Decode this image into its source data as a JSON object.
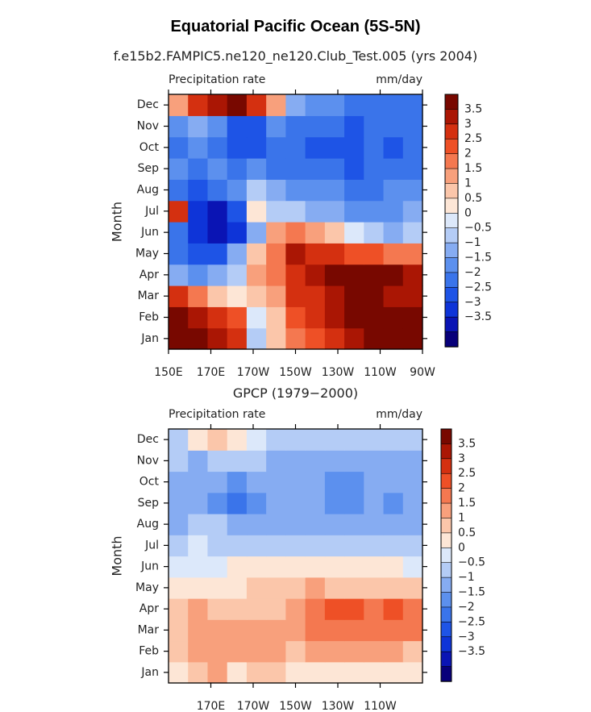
{
  "figure": {
    "title": "Equatorial Pacific Ocean (5S-5N)",
    "colorbar_ticks": [
      "3.5",
      "3",
      "2.5",
      "2",
      "1.5",
      "1",
      "0.5",
      "0",
      "−0.5",
      "−1",
      "−1.5",
      "−2",
      "−2.5",
      "−3",
      "−3.5"
    ],
    "colors": {
      "levels": [
        "#08007a",
        "#0a14b4",
        "#0e34d8",
        "#1e54e6",
        "#3a74ea",
        "#5c90ee",
        "#86acf2",
        "#b4ccf6",
        "#dce8fa",
        "#fde6d6",
        "#fbc6aa",
        "#f8a07c",
        "#f47850",
        "#ee5026",
        "#d43010",
        "#aa1604",
        "#780800"
      ]
    }
  },
  "chart_data": [
    {
      "type": "heatmap",
      "subtitle": "f.e15b2.FAMPIC5.ne120_ne120.Club_Test.005 (yrs 2004)",
      "left_label": "Precipitation rate",
      "right_label": "mm/day",
      "ylabel": "Month",
      "y_ticks": [
        "Jan",
        "Feb",
        "Mar",
        "Apr",
        "May",
        "Jun",
        "Jul",
        "Aug",
        "Sep",
        "Oct",
        "Nov",
        "Dec"
      ],
      "x_ticks": [
        "150E",
        "170E",
        "170W",
        "150W",
        "130W",
        "110W",
        "90W"
      ],
      "x_tick_lons": [
        150,
        170,
        190,
        210,
        230,
        250,
        270
      ],
      "xlim": [
        150,
        270
      ],
      "lons": [
        150,
        160,
        170,
        180,
        190,
        200,
        210,
        220,
        230,
        240,
        250,
        260,
        270
      ],
      "values": [
        [
          4,
          4,
          3.5,
          3,
          -0.5,
          1,
          2,
          2.5,
          3,
          3.5,
          4,
          4,
          4
        ],
        [
          4,
          3.5,
          3,
          2.5,
          0,
          1,
          2.5,
          3,
          3.5,
          4,
          4,
          4,
          4
        ],
        [
          3,
          2,
          1,
          0.5,
          1,
          1.5,
          3,
          3,
          3.5,
          4,
          4,
          3.5,
          3.5
        ],
        [
          -1,
          -1.5,
          -1,
          -0.5,
          1.5,
          2,
          3,
          3.5,
          4,
          4,
          4,
          4,
          3.5
        ],
        [
          -2,
          -2.5,
          -2.5,
          -1,
          1,
          2,
          3.5,
          3,
          3,
          2.5,
          2.5,
          2,
          2
        ],
        [
          -2,
          -3,
          -3.5,
          -3,
          -1,
          1.5,
          2,
          1.5,
          1,
          0,
          -0.5,
          -1,
          -0.5
        ],
        [
          3,
          -3,
          -3.5,
          -2.5,
          0.5,
          -0.5,
          -0.5,
          -1,
          -1,
          -1.5,
          -1.5,
          -1.5,
          -1
        ],
        [
          -2,
          -2.5,
          -2,
          -1.5,
          -0.5,
          -1,
          -1.5,
          -1.5,
          -1.5,
          -2,
          -2,
          -1.5,
          -1.5
        ],
        [
          -1.5,
          -2,
          -1.5,
          -2,
          -1.5,
          -2,
          -2,
          -2,
          -2,
          -2.5,
          -2,
          -2,
          -2
        ],
        [
          -2,
          -1.5,
          -2,
          -2.5,
          -2.5,
          -2,
          -2,
          -2.5,
          -2.5,
          -2.5,
          -2,
          -2.5,
          -2
        ],
        [
          -1.5,
          -1,
          -1.5,
          -2.5,
          -2.5,
          -1.5,
          -2,
          -2,
          -2,
          -2.5,
          -2,
          -2,
          -2
        ],
        [
          1.5,
          3,
          3.5,
          4,
          3,
          1.5,
          -1,
          -1.5,
          -1.5,
          -2,
          -2,
          -2,
          -2
        ]
      ]
    },
    {
      "type": "heatmap",
      "subtitle": "GPCP (1979−2000)",
      "left_label": "Precipitation rate",
      "right_label": "mm/day",
      "ylabel": "Month",
      "y_ticks": [
        "Jan",
        "Feb",
        "Mar",
        "Apr",
        "May",
        "Jun",
        "Jul",
        "Aug",
        "Sep",
        "Oct",
        "Nov",
        "Dec"
      ],
      "x_ticks": [
        "170E",
        "170W",
        "150W",
        "130W",
        "110W"
      ],
      "x_tick_lons": [
        170,
        190,
        210,
        230,
        250
      ],
      "xlim": [
        150,
        270
      ],
      "lons": [
        150,
        160,
        170,
        180,
        190,
        200,
        210,
        220,
        230,
        240,
        250,
        260,
        270
      ],
      "values": [
        [
          0.5,
          1,
          1.5,
          0.5,
          1,
          1,
          0.5,
          0.5,
          0.5,
          0.5,
          0.5,
          0.5,
          0.5
        ],
        [
          1,
          1.5,
          1.5,
          1.5,
          1.5,
          1.5,
          1,
          1.5,
          1.5,
          1.5,
          1.5,
          1.5,
          1
        ],
        [
          1,
          1.5,
          1.5,
          1.5,
          1.5,
          1.5,
          1.5,
          2,
          2,
          2,
          2,
          2,
          2
        ],
        [
          1,
          1.5,
          1,
          1,
          1,
          1,
          1.5,
          2,
          2.5,
          2.5,
          2,
          2.5,
          2
        ],
        [
          0.5,
          0.5,
          0.5,
          0.5,
          1,
          1,
          1,
          1.5,
          1,
          1,
          1,
          1,
          1
        ],
        [
          0,
          0,
          0,
          0.5,
          0.5,
          0.5,
          0.5,
          0.5,
          0.5,
          0.5,
          0.5,
          0.5,
          0
        ],
        [
          -0.5,
          0,
          -0.5,
          -0.5,
          -0.5,
          -0.5,
          -0.5,
          -0.5,
          -0.5,
          -0.5,
          -0.5,
          -0.5,
          -0.5
        ],
        [
          -1,
          -0.5,
          -0.5,
          -1,
          -1,
          -1,
          -1,
          -1,
          -1,
          -1,
          -1,
          -1,
          -1
        ],
        [
          -1,
          -1,
          -1.5,
          -2,
          -1.5,
          -1,
          -1,
          -1,
          -1.5,
          -1.5,
          -1,
          -1.5,
          -1
        ],
        [
          -1,
          -1,
          -1,
          -1.5,
          -1,
          -1,
          -1,
          -1,
          -1.5,
          -1.5,
          -1,
          -1,
          -1
        ],
        [
          -0.5,
          -1,
          -0.5,
          -0.5,
          -0.5,
          -1,
          -1,
          -1,
          -1,
          -1,
          -1,
          -1,
          -1
        ],
        [
          -0.5,
          0.5,
          1,
          0.5,
          0,
          -0.5,
          -0.5,
          -0.5,
          -0.5,
          -0.5,
          -0.5,
          -0.5,
          -0.5
        ]
      ]
    }
  ]
}
